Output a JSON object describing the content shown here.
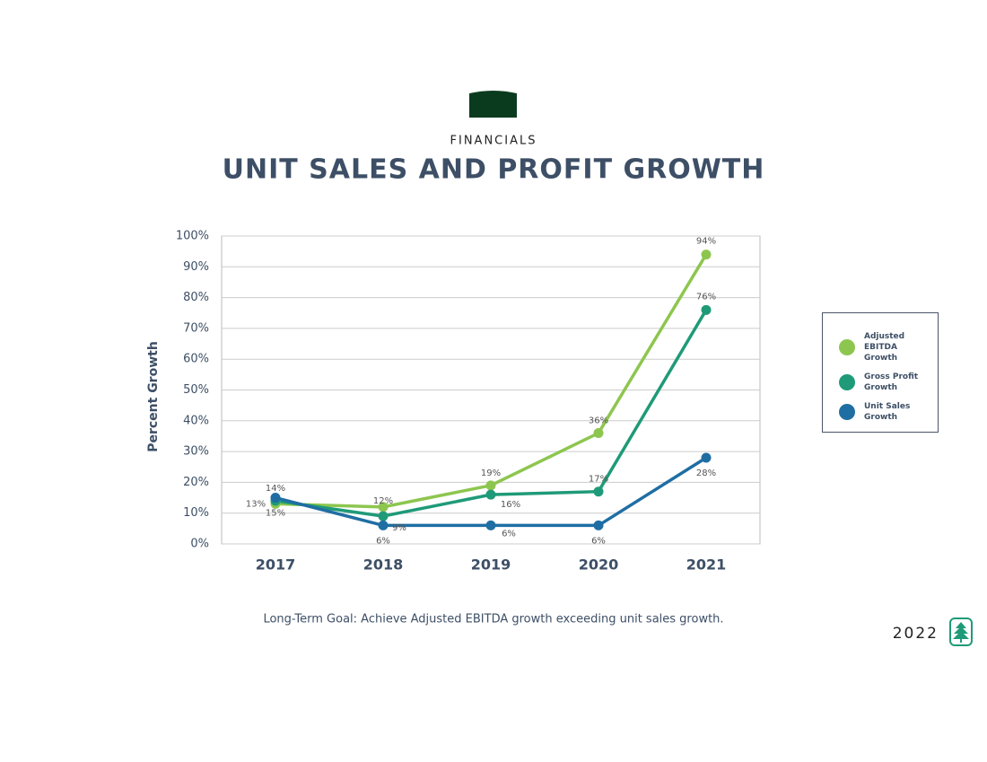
{
  "section": "FINANCIALS",
  "year": "2022",
  "footnote": "Long-Term Goal: Achieve Adjusted EBITDA growth exceeding unit sales growth.",
  "chart_data": {
    "type": "line",
    "title": "UNIT SALES AND PROFIT GROWTH",
    "y_label": "Percent Growth",
    "categories": [
      "2017",
      "2018",
      "2019",
      "2020",
      "2021"
    ],
    "series": [
      {
        "name": "Adjusted EBITDA Growth",
        "color": "#8dc64f",
        "values": [
          13,
          12,
          19,
          36,
          94
        ],
        "value_labels": [
          "13%",
          "12%",
          "19%",
          "36%",
          "94%"
        ]
      },
      {
        "name": "Gross Profit Growth",
        "color": "#1f9a78",
        "values": [
          14,
          9,
          16,
          17,
          76
        ],
        "value_labels": [
          "14%",
          "9%",
          "16%",
          "17%",
          "76%"
        ]
      },
      {
        "name": "Unit Sales Growth",
        "color": "#1f6ea3",
        "values": [
          15,
          6,
          6,
          6,
          28
        ],
        "value_labels": [
          "15%",
          "6%",
          "6%",
          "6%",
          "28%"
        ]
      }
    ],
    "ylim": [
      0,
      100
    ],
    "yticks": [
      {
        "value": 0,
        "label": "0%"
      },
      {
        "value": 10,
        "label": "10%"
      },
      {
        "value": 20,
        "label": "20%"
      },
      {
        "value": 30,
        "label": "30%"
      },
      {
        "value": 40,
        "label": "40%"
      },
      {
        "value": 50,
        "label": "50%"
      },
      {
        "value": 60,
        "label": "60%"
      },
      {
        "value": 70,
        "label": "70%"
      },
      {
        "value": 80,
        "label": "80%"
      },
      {
        "value": 90,
        "label": "90%"
      },
      {
        "value": 100,
        "label": "100%"
      }
    ],
    "grid": true,
    "legend": "right"
  }
}
